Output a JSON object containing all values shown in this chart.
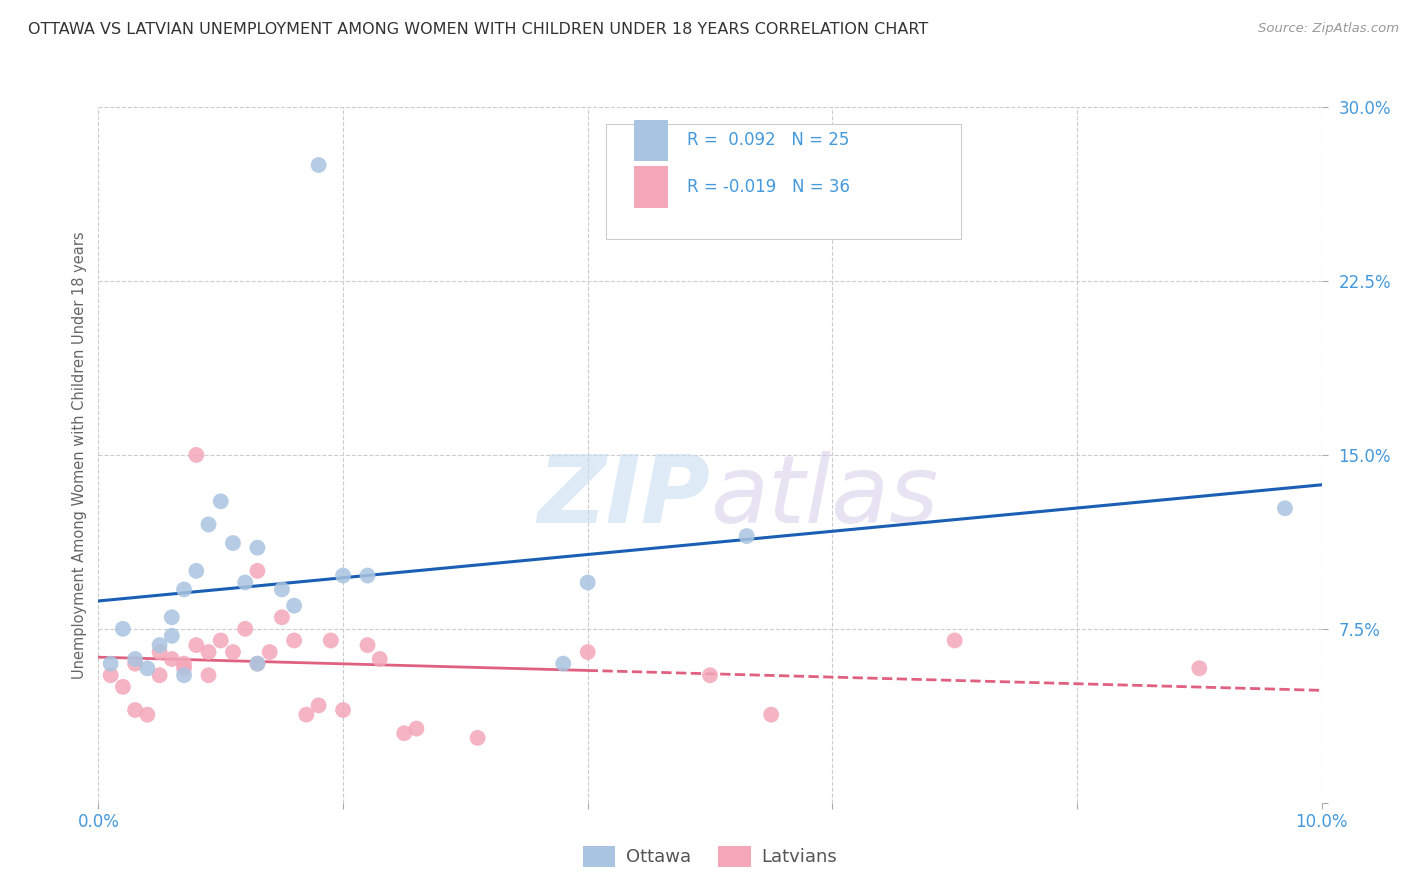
{
  "title": "OTTAWA VS LATVIAN UNEMPLOYMENT AMONG WOMEN WITH CHILDREN UNDER 18 YEARS CORRELATION CHART",
  "source": "Source: ZipAtlas.com",
  "ylabel": "Unemployment Among Women with Children Under 18 years",
  "xlim": [
    0.0,
    0.1
  ],
  "ylim": [
    0.0,
    0.3
  ],
  "xticks": [
    0.0,
    0.02,
    0.04,
    0.06,
    0.08,
    0.1
  ],
  "yticks": [
    0.0,
    0.075,
    0.15,
    0.225,
    0.3
  ],
  "xticklabels": [
    "0.0%",
    "",
    "",
    "",
    "",
    "10.0%"
  ],
  "yticklabels": [
    "",
    "7.5%",
    "15.0%",
    "22.5%",
    "30.0%"
  ],
  "ottawa_color": "#a8c4e0",
  "latvian_color": "#f4a7b9",
  "ottawa_line_color": "#1a5fb4",
  "latvian_line_color": "#e06080",
  "ottawa_R": 0.092,
  "ottawa_N": 25,
  "latvian_R": -0.019,
  "latvian_N": 36,
  "ottawa_x": [
    0.001,
    0.002,
    0.003,
    0.004,
    0.005,
    0.006,
    0.006,
    0.007,
    0.007,
    0.008,
    0.009,
    0.01,
    0.011,
    0.012,
    0.013,
    0.013,
    0.015,
    0.016,
    0.018,
    0.02,
    0.022,
    0.038,
    0.04,
    0.053,
    0.097
  ],
  "ottawa_y": [
    0.06,
    0.075,
    0.062,
    0.058,
    0.068,
    0.08,
    0.072,
    0.055,
    0.092,
    0.1,
    0.12,
    0.13,
    0.112,
    0.095,
    0.11,
    0.06,
    0.092,
    0.085,
    0.275,
    0.098,
    0.098,
    0.06,
    0.095,
    0.115,
    0.127
  ],
  "latvian_x": [
    0.001,
    0.002,
    0.003,
    0.003,
    0.004,
    0.005,
    0.005,
    0.006,
    0.007,
    0.007,
    0.008,
    0.008,
    0.009,
    0.009,
    0.01,
    0.011,
    0.012,
    0.013,
    0.013,
    0.014,
    0.015,
    0.016,
    0.017,
    0.018,
    0.019,
    0.02,
    0.022,
    0.023,
    0.025,
    0.026,
    0.031,
    0.04,
    0.05,
    0.055,
    0.07,
    0.09
  ],
  "latvian_y": [
    0.055,
    0.05,
    0.04,
    0.06,
    0.038,
    0.055,
    0.065,
    0.062,
    0.058,
    0.06,
    0.068,
    0.15,
    0.055,
    0.065,
    0.07,
    0.065,
    0.075,
    0.06,
    0.1,
    0.065,
    0.08,
    0.07,
    0.038,
    0.042,
    0.07,
    0.04,
    0.068,
    0.062,
    0.03,
    0.032,
    0.028,
    0.065,
    0.055,
    0.038,
    0.07,
    0.058
  ],
  "watermark_zip": "ZIP",
  "watermark_atlas": "atlas",
  "background_color": "#ffffff",
  "grid_color": "#cccccc",
  "title_color": "#333333",
  "axis_label_color": "#666666",
  "tick_color": "#4499dd",
  "legend_R_color": "#333333",
  "legend_N_color": "#4499dd"
}
